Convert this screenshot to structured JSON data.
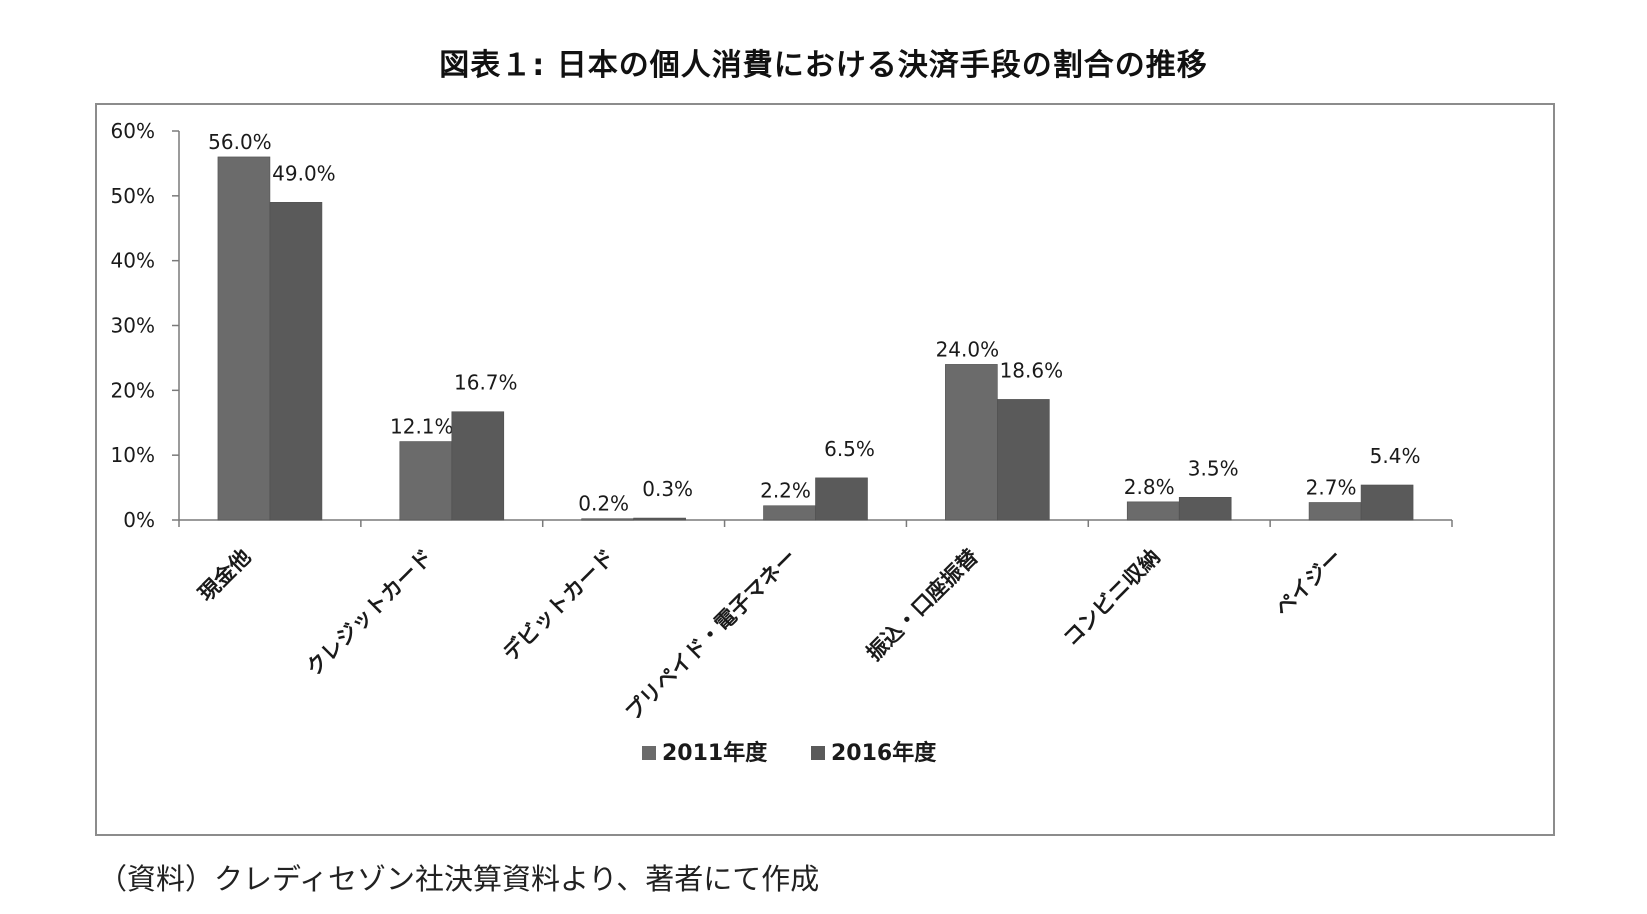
{
  "title": "図表１: 日本の個人消費における決済手段の割合の推移",
  "source_note": "（資料）クレディセゾン社決算資料より、著者にて作成",
  "colors": {
    "series_2011": "#6b6b6b",
    "series_2016": "#5a5a5a",
    "axis": "#7a7a7a",
    "frame": "#8c8c8c",
    "text": "#1a1a1a"
  },
  "chart_data": {
    "type": "bar",
    "title": "図表１: 日本の個人消費における決済手段の割合の推移",
    "xlabel": "",
    "ylabel": "",
    "ylim": [
      0,
      60
    ],
    "yticks": [
      "0%",
      "10%",
      "20%",
      "30%",
      "40%",
      "50%",
      "60%"
    ],
    "grid": false,
    "legend_position": "bottom",
    "categories": [
      "現金他",
      "クレジットカード",
      "デビットカード",
      "プリペイド・電子マネー",
      "振込・口座振替",
      "コンビニ収納",
      "ペイジー"
    ],
    "series": [
      {
        "name": "2011年度",
        "values": [
          56.0,
          12.1,
          0.2,
          2.2,
          24.0,
          2.8,
          2.7
        ],
        "labels": [
          "56.0%",
          "12.1%",
          "0.2%",
          "2.2%",
          "24.0%",
          "2.8%",
          "2.7%"
        ]
      },
      {
        "name": "2016年度",
        "values": [
          49.0,
          16.7,
          0.3,
          6.5,
          18.6,
          3.5,
          5.4
        ],
        "labels": [
          "49.0%",
          "16.7%",
          "0.3%",
          "6.5%",
          "18.6%",
          "3.5%",
          "5.4%"
        ]
      }
    ]
  }
}
